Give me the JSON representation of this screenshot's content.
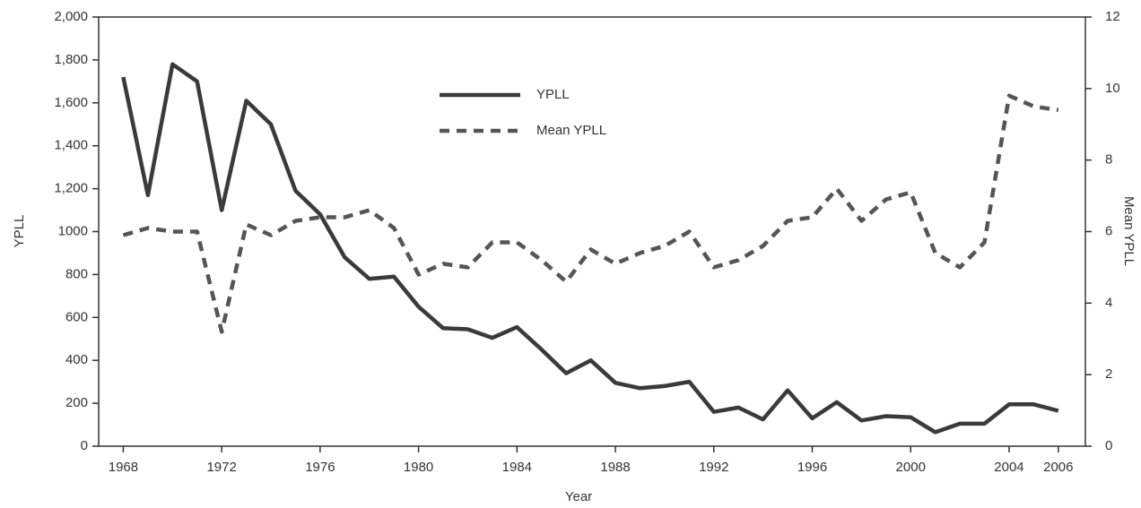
{
  "chart_data": {
    "type": "line",
    "x_label": "Year",
    "y_label": "YPLL",
    "y2_label": "Mean YPLL",
    "x": [
      1968,
      1969,
      1970,
      1971,
      1972,
      1973,
      1974,
      1975,
      1976,
      1977,
      1978,
      1979,
      1980,
      1981,
      1982,
      1983,
      1984,
      1985,
      1986,
      1987,
      1988,
      1989,
      1990,
      1991,
      1992,
      1993,
      1994,
      1995,
      1996,
      1997,
      1998,
      1999,
      2000,
      2001,
      2002,
      2003,
      2004,
      2005,
      2006
    ],
    "series": [
      {
        "name": "YPLL",
        "color": "#3a3a3a",
        "style": "solid",
        "values": [
          1720,
          1170,
          1780,
          1700,
          1100,
          1610,
          1500,
          1190,
          1080,
          880,
          780,
          790,
          650,
          550,
          545,
          505,
          555,
          450,
          340,
          400,
          295,
          270,
          280,
          300,
          160,
          180,
          125,
          260,
          130,
          205,
          120,
          140,
          135,
          65,
          105,
          105,
          195,
          195,
          165
        ]
      },
      {
        "name": "Mean YPLL",
        "color": "#555555",
        "style": "dashed",
        "axis": "y2",
        "values": [
          5.9,
          6.1,
          6.0,
          6.0,
          3.2,
          6.2,
          5.9,
          6.3,
          6.4,
          6.4,
          6.6,
          6.1,
          4.8,
          5.1,
          5.0,
          5.7,
          5.7,
          5.2,
          4.6,
          5.5,
          5.1,
          5.4,
          5.6,
          6.0,
          5.0,
          5.2,
          5.6,
          6.3,
          6.4,
          7.2,
          6.3,
          6.9,
          7.1,
          5.4,
          5.0,
          5.7,
          9.8,
          9.5,
          9.4
        ]
      }
    ],
    "xlim": [
      1967,
      2007.1
    ],
    "xticks": [
      1968,
      1972,
      1976,
      1980,
      1984,
      1988,
      1992,
      1996,
      2000,
      2004,
      2006
    ],
    "ylim": [
      0,
      2000
    ],
    "yticks": [
      0,
      200,
      400,
      600,
      800,
      1000,
      {
        "value": 1200,
        "label": "1,200"
      },
      {
        "value": 1400,
        "label": "1,400"
      },
      {
        "value": 1600,
        "label": "1,600"
      },
      {
        "value": 1800,
        "label": "1,800"
      },
      {
        "value": 2000,
        "label": "2,000"
      }
    ],
    "y2lim": [
      0,
      12
    ],
    "y2ticks": [
      0,
      2,
      4,
      6,
      8,
      10,
      12
    ],
    "legend": "top-center"
  }
}
